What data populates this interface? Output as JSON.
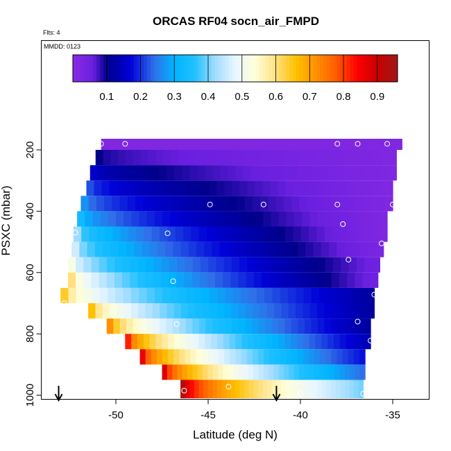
{
  "chart_data": {
    "type": "heatmap",
    "title": "ORCAS RF04 socn_air_FMPD",
    "subtitle_flights": "Flts: 4",
    "subtitle_date": "MMDD: 0123",
    "xlabel": "Latitude (deg N)",
    "ylabel": "PSXC (mbar)",
    "x_ticks": [
      -50,
      -45,
      -40,
      -35
    ],
    "x_tick_labels": [
      "-50",
      "-45",
      "-40",
      "-35"
    ],
    "y_ticks": [
      200,
      400,
      600,
      800,
      1000
    ],
    "y_tick_labels": [
      "200",
      "400",
      "600",
      "800",
      "1000"
    ],
    "xlim": [
      -54.5,
      -33.0
    ],
    "ylim": [
      1010,
      100
    ],
    "colorbar": {
      "range": [
        0.0,
        0.96
      ],
      "ticks": [
        0.1,
        0.2,
        0.3,
        0.4,
        0.5,
        0.6,
        0.7,
        0.8,
        0.9
      ],
      "tick_labels": [
        "0.1",
        "0.2",
        "0.3",
        "0.4",
        "0.5",
        "0.6",
        "0.7",
        "0.8",
        "0.9"
      ]
    },
    "colormap": [
      {
        "v": 0.0,
        "c": "#8a2be2"
      },
      {
        "v": 0.06,
        "c": "#6a1fe0"
      },
      {
        "v": 0.1,
        "c": "#00008b"
      },
      {
        "v": 0.17,
        "c": "#0000d8"
      },
      {
        "v": 0.24,
        "c": "#2f6fe8"
      },
      {
        "v": 0.3,
        "c": "#00b4ff"
      },
      {
        "v": 0.36,
        "c": "#20c0ff"
      },
      {
        "v": 0.42,
        "c": "#a0dcff"
      },
      {
        "v": 0.48,
        "c": "#e8f6ff"
      },
      {
        "v": 0.54,
        "c": "#ffffd8"
      },
      {
        "v": 0.6,
        "c": "#ffe080"
      },
      {
        "v": 0.66,
        "c": "#ffc000"
      },
      {
        "v": 0.72,
        "c": "#ff9000"
      },
      {
        "v": 0.78,
        "c": "#ff5a00"
      },
      {
        "v": 0.84,
        "c": "#ff0000"
      },
      {
        "v": 0.9,
        "c": "#c80000"
      },
      {
        "v": 0.96,
        "c": "#a01818"
      }
    ],
    "bands": [
      {
        "p_top": 160,
        "p_bot": 200,
        "lat_min": -50.8,
        "lat_max": -34.5,
        "west_val": 0.02,
        "east_val": 0.02
      },
      {
        "p_top": 200,
        "p_bot": 250,
        "lat_min": -51.1,
        "lat_max": -34.8,
        "west_val": 0.1,
        "east_val": 0.02
      },
      {
        "p_top": 250,
        "p_bot": 300,
        "lat_min": -51.4,
        "lat_max": -34.8,
        "west_val": 0.16,
        "east_val": 0.02
      },
      {
        "p_top": 300,
        "p_bot": 350,
        "lat_min": -51.6,
        "lat_max": -35.0,
        "west_val": 0.22,
        "east_val": 0.02
      },
      {
        "p_top": 350,
        "p_bot": 400,
        "lat_min": -51.9,
        "lat_max": -35.0,
        "west_val": 0.27,
        "east_val": 0.02
      },
      {
        "p_top": 400,
        "p_bot": 450,
        "lat_min": -52.1,
        "lat_max": -35.3,
        "west_val": 0.33,
        "east_val": 0.02
      },
      {
        "p_top": 450,
        "p_bot": 500,
        "lat_min": -52.3,
        "lat_max": -35.3,
        "west_val": 0.42,
        "east_val": 0.02
      },
      {
        "p_top": 500,
        "p_bot": 550,
        "lat_min": -52.4,
        "lat_max": -35.5,
        "west_val": 0.46,
        "east_val": 0.03
      },
      {
        "p_top": 550,
        "p_bot": 600,
        "lat_min": -52.6,
        "lat_max": -35.7,
        "west_val": 0.52,
        "east_val": 0.05
      },
      {
        "p_top": 600,
        "p_bot": 650,
        "lat_min": -52.6,
        "lat_max": -35.8,
        "west_val": 0.6,
        "east_val": 0.05
      },
      {
        "p_top": 650,
        "p_bot": 700,
        "lat_min": -53.0,
        "lat_max": -36.0,
        "west_val": 0.64,
        "east_val": 0.12
      },
      {
        "p_top": 700,
        "p_bot": 750,
        "lat_min": -51.5,
        "lat_max": -36.0,
        "west_val": 0.66,
        "east_val": 0.12
      },
      {
        "p_top": 750,
        "p_bot": 800,
        "lat_min": -50.5,
        "lat_max": -36.2,
        "west_val": 0.72,
        "east_val": 0.12
      },
      {
        "p_top": 800,
        "p_bot": 850,
        "lat_min": -49.5,
        "lat_max": -36.2,
        "west_val": 0.82,
        "east_val": 0.14
      },
      {
        "p_top": 850,
        "p_bot": 900,
        "lat_min": -48.7,
        "lat_max": -36.5,
        "west_val": 0.86,
        "east_val": 0.18
      },
      {
        "p_top": 900,
        "p_bot": 950,
        "lat_min": -47.5,
        "lat_max": -36.5,
        "west_val": 0.88,
        "east_val": 0.24
      },
      {
        "p_top": 950,
        "p_bot": 1010,
        "lat_min": -46.5,
        "lat_max": -36.6,
        "west_val": 0.94,
        "east_val": 0.4
      }
    ],
    "sample_points": [
      {
        "lat": -50.8,
        "p": 180
      },
      {
        "lat": -49.5,
        "p": 180
      },
      {
        "lat": -38.0,
        "p": 180
      },
      {
        "lat": -36.9,
        "p": 180
      },
      {
        "lat": -35.3,
        "p": 180
      },
      {
        "lat": -44.9,
        "p": 378
      },
      {
        "lat": -42.0,
        "p": 378
      },
      {
        "lat": -38.0,
        "p": 378
      },
      {
        "lat": -35.0,
        "p": 378
      },
      {
        "lat": -37.7,
        "p": 442
      },
      {
        "lat": -52.2,
        "p": 470
      },
      {
        "lat": -47.2,
        "p": 472
      },
      {
        "lat": -35.6,
        "p": 505
      },
      {
        "lat": -37.4,
        "p": 558
      },
      {
        "lat": -46.9,
        "p": 628
      },
      {
        "lat": -36.0,
        "p": 672
      },
      {
        "lat": -52.8,
        "p": 700
      },
      {
        "lat": -36.9,
        "p": 760
      },
      {
        "lat": -46.7,
        "p": 768
      },
      {
        "lat": -36.2,
        "p": 822
      },
      {
        "lat": -43.9,
        "p": 972
      },
      {
        "lat": -46.3,
        "p": 985
      },
      {
        "lat": -40.0,
        "p": 995
      },
      {
        "lat": -36.6,
        "p": 995
      }
    ],
    "arrows_lat": [
      -53.1,
      -41.3
    ]
  }
}
